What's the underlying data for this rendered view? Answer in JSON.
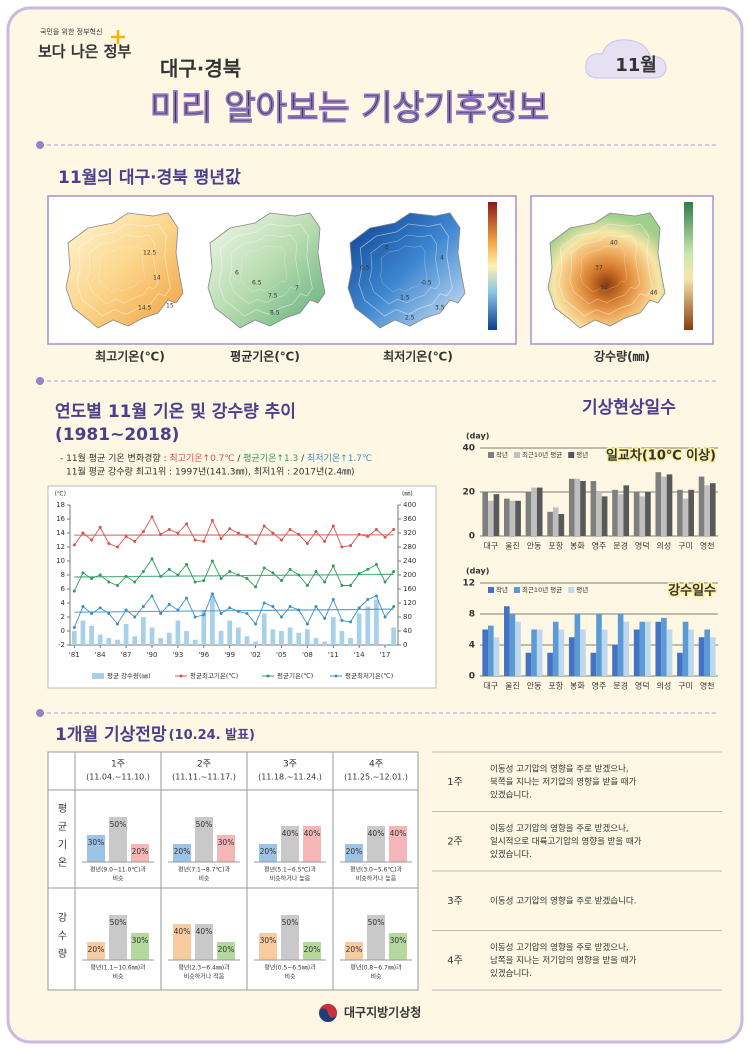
{
  "header": {
    "slogan": "국민을 위한 정부혁신",
    "logo": "보다 나은 정부",
    "region": "대구·경북",
    "title": "미리 알아보는 기상기후정보",
    "month": "11월"
  },
  "normals": {
    "title": "11월의 대구·경북 평년값",
    "maps": [
      {
        "label": "최고기온(℃)",
        "contours": [
          "12.5",
          "14",
          "14.5",
          "15"
        ]
      },
      {
        "label": "평균기온(℃)",
        "contours": [
          "6",
          "6.5",
          "7.5",
          "8.5",
          "7"
        ]
      },
      {
        "label": "최저기온(℃)",
        "contours": [
          "0",
          "0.5",
          "-0.5",
          "1.5",
          "2.5",
          "3.5",
          "4"
        ]
      },
      {
        "label": "강수량(㎜)",
        "contours": [
          "40",
          "37",
          "34",
          "46"
        ]
      }
    ]
  },
  "trend": {
    "title": "연도별 11월 기온 및 강수량 추이",
    "period": "(1981~2018)",
    "note1": {
      "prefix": "- 11월 평균 기온 변화경향 : ",
      "sep": " / ",
      "max_label": "최고기온",
      "max_change": "↑0.7℃",
      "mean_label": "평균기온",
      "mean_change": "↑1.3",
      "min_label": "최저기온",
      "min_change": "↑1.7℃"
    },
    "note2": "11월 평균 강수량 최고1위 : 1997년(141.3㎜), 최저1위 : 2017년(2.4㎜)"
  },
  "days_title": "기상현상일수",
  "chart_data": [
    {
      "type": "combo",
      "y_label": "(℃)",
      "y2_label": "(㎜)",
      "x": [
        1981,
        1982,
        1983,
        1984,
        1985,
        1986,
        1987,
        1988,
        1989,
        1990,
        1991,
        1992,
        1993,
        1994,
        1995,
        1996,
        1997,
        1998,
        1999,
        2000,
        2001,
        2002,
        2003,
        2004,
        2005,
        2006,
        2007,
        2008,
        2009,
        2010,
        2011,
        2012,
        2013,
        2014,
        2015,
        2016,
        2017,
        2018
      ],
      "xlim": [
        1980.5,
        2018.5
      ],
      "xticks": [
        {
          "value": 1981,
          "label": "'81"
        },
        {
          "value": 1984,
          "label": "'84"
        },
        {
          "value": 1987,
          "label": "'87"
        },
        {
          "value": 1990,
          "label": "'90"
        },
        {
          "value": 1993,
          "label": "'93"
        },
        {
          "value": 1996,
          "label": "'96"
        },
        {
          "value": 1999,
          "label": "'99"
        },
        {
          "value": 2002,
          "label": "'02"
        },
        {
          "value": 2005,
          "label": "'05"
        },
        {
          "value": 2008,
          "label": "'08"
        },
        {
          "value": 2011,
          "label": "'11"
        },
        {
          "value": 2014,
          "label": "'14"
        },
        {
          "value": 2017,
          "label": "'17"
        }
      ],
      "ylim": [
        -2,
        18
      ],
      "yticks": [
        -2,
        0,
        2,
        4,
        6,
        8,
        10,
        12,
        14,
        16,
        18
      ],
      "y2lim": [
        0,
        400
      ],
      "y2ticks": [
        0,
        40,
        80,
        120,
        160,
        200,
        240,
        280,
        320,
        360,
        400
      ],
      "series": [
        {
          "name": "평균 강수량(㎜)",
          "type": "bar",
          "axis": "y2",
          "color": "#a9d0ea",
          "values": [
            40,
            70,
            55,
            30,
            20,
            15,
            60,
            25,
            80,
            50,
            20,
            35,
            70,
            40,
            15,
            100,
            141.3,
            40,
            70,
            50,
            25,
            10,
            90,
            45,
            40,
            50,
            35,
            45,
            20,
            10,
            80,
            40,
            20,
            90,
            110,
            130,
            2.4,
            50
          ]
        },
        {
          "name": "평균최고기온(℃)",
          "type": "line",
          "color": "#d9534f",
          "values": [
            12.3,
            14.0,
            13.0,
            14.8,
            12.5,
            12.0,
            13.5,
            12.8,
            14.2,
            16.3,
            13.8,
            14.5,
            14.0,
            15.3,
            13.0,
            12.8,
            15.8,
            13.2,
            14.6,
            14.0,
            13.5,
            12.5,
            15.0,
            14.0,
            13.0,
            14.5,
            13.8,
            12.5,
            14.2,
            12.8,
            15.0,
            12.0,
            12.2,
            13.8,
            13.5,
            14.5,
            13.4,
            14.5
          ]
        },
        {
          "name": "평균기온(℃)",
          "type": "line",
          "color": "#2e9e60",
          "values": [
            5.7,
            8.3,
            7.5,
            8.0,
            7.0,
            6.5,
            7.8,
            7.0,
            8.5,
            10.3,
            7.8,
            8.8,
            8.0,
            9.5,
            7.0,
            7.2,
            10.0,
            7.5,
            8.5,
            8.0,
            7.5,
            6.3,
            9.0,
            8.3,
            7.2,
            8.8,
            8.0,
            6.5,
            8.5,
            7.0,
            9.3,
            6.5,
            6.5,
            8.2,
            8.8,
            9.5,
            7.0,
            8.5
          ]
        },
        {
          "name": "평균최저기온(℃)",
          "type": "line",
          "color": "#3b8fc4",
          "values": [
            0.5,
            3.5,
            2.5,
            3.3,
            2.5,
            1.0,
            3.0,
            2.0,
            3.5,
            5.0,
            2.5,
            3.8,
            3.0,
            4.7,
            2.0,
            2.3,
            5.3,
            2.5,
            3.3,
            2.8,
            2.5,
            1.0,
            4.0,
            3.5,
            2.0,
            3.5,
            3.0,
            1.0,
            3.5,
            1.8,
            4.5,
            1.5,
            1.3,
            3.3,
            4.5,
            5.0,
            2.0,
            3.5
          ]
        }
      ]
    },
    {
      "type": "bar",
      "title": "일교차(10℃ 이상)",
      "y_label": "(day)",
      "categories": [
        "대구",
        "울진",
        "안동",
        "포항",
        "봉화",
        "영주",
        "문경",
        "영덕",
        "의성",
        "구미",
        "영천"
      ],
      "ylim": [
        0,
        40
      ],
      "yticks": [
        0,
        20,
        40
      ],
      "grid": true,
      "series": [
        {
          "name": "작년",
          "color": "#7f7f7f",
          "values": [
            20,
            17,
            20,
            11,
            26,
            25,
            21,
            20,
            29,
            21,
            27
          ]
        },
        {
          "name": "최근10년 평균",
          "color": "#bfbfbf",
          "values": [
            16,
            16,
            22,
            13,
            26,
            20,
            19,
            18,
            27,
            17,
            23
          ]
        },
        {
          "name": "평년",
          "color": "#595959",
          "values": [
            19,
            16,
            22,
            10,
            25,
            18,
            23,
            20,
            28,
            21,
            24
          ]
        }
      ]
    },
    {
      "type": "bar",
      "title": "강수일수",
      "y_label": "(day)",
      "categories": [
        "대구",
        "울진",
        "안동",
        "포항",
        "봉화",
        "영주",
        "문경",
        "영덕",
        "의성",
        "구미",
        "영천"
      ],
      "ylim": [
        0,
        12
      ],
      "yticks": [
        0,
        4,
        8,
        12
      ],
      "grid": true,
      "series": [
        {
          "name": "작년",
          "color": "#4472c4",
          "values": [
            6,
            9,
            3,
            3,
            5,
            3,
            4,
            6,
            7,
            3,
            5
          ]
        },
        {
          "name": "최근10년 평균",
          "color": "#5b9bd5",
          "values": [
            6.5,
            8,
            6,
            7,
            8,
            8,
            8,
            7,
            7.5,
            7,
            6
          ]
        },
        {
          "name": "평년",
          "color": "#bdd7ee",
          "values": [
            5,
            7,
            6,
            6,
            6,
            6,
            7,
            7,
            6,
            6,
            5
          ]
        }
      ]
    }
  ],
  "outlook": {
    "title": "1개월 기상전망",
    "issued": "(10.24. 발표)",
    "weeks": [
      {
        "label": "1주",
        "period": "(11.04.~11.10.)"
      },
      {
        "label": "2주",
        "period": "(11.11.~11.17.)"
      },
      {
        "label": "3주",
        "period": "(11.18.~11.24.)"
      },
      {
        "label": "4주",
        "period": "(11.25.~12.01.)"
      }
    ],
    "rows": [
      {
        "label": "평균기온",
        "colors": [
          "#9dc3e6",
          "#c9c9c9",
          "#f4b6b6"
        ],
        "cells": [
          {
            "values": [
              30,
              50,
              20
            ],
            "value_labels": [
              "30%",
              "50%",
              "20%"
            ],
            "caption": [
              "평년(9.0~11.0℃)과",
              "비슷"
            ]
          },
          {
            "values": [
              20,
              50,
              30
            ],
            "value_labels": [
              "20%",
              "50%",
              "30%"
            ],
            "caption": [
              "평년(7.1~8.7℃)과",
              "비슷"
            ]
          },
          {
            "values": [
              20,
              40,
              40
            ],
            "value_labels": [
              "20%",
              "40%",
              "40%"
            ],
            "caption": [
              "평년(5.1~6.5℃)과",
              "비슷하거나 높음"
            ]
          },
          {
            "values": [
              20,
              40,
              40
            ],
            "value_labels": [
              "20%",
              "40%",
              "40%"
            ],
            "caption": [
              "평년(3.0~5.6℃)과",
              "비슷하거나 높음"
            ]
          }
        ]
      },
      {
        "label": "강수량",
        "colors": [
          "#f8cba0",
          "#c9c9c9",
          "#b5d99c"
        ],
        "cells": [
          {
            "values": [
              20,
              50,
              30
            ],
            "value_labels": [
              "20%",
              "50%",
              "30%"
            ],
            "caption": [
              "평년(1.1~10.6㎜)과",
              "비슷"
            ]
          },
          {
            "values": [
              40,
              40,
              20
            ],
            "value_labels": [
              "40%",
              "40%",
              "20%"
            ],
            "caption": [
              "평년(2.3~6.4㎜)과",
              "비슷하거나 적음"
            ]
          },
          {
            "values": [
              30,
              50,
              20
            ],
            "value_labels": [
              "30%",
              "50%",
              "20%"
            ],
            "caption": [
              "평년(0.5~6.5㎜)과",
              "비슷"
            ]
          },
          {
            "values": [
              20,
              50,
              30
            ],
            "value_labels": [
              "20%",
              "50%",
              "30%"
            ],
            "caption": [
              "평년(0.8~6.7㎜)과",
              "비슷"
            ]
          }
        ]
      }
    ],
    "comments": [
      {
        "week": "1주",
        "lines": [
          "이동성 고기압의 영향을 주로 받겠으나,",
          "북쪽을 지나는 저기압의 영향을 받을 때가",
          "있겠습니다."
        ]
      },
      {
        "week": "2주",
        "lines": [
          "이동성 고기압의 영향을 주로 받겠으나,",
          "일시적으로 대륙고기압의 영향을 받을 때가",
          "있겠습니다."
        ]
      },
      {
        "week": "3주",
        "lines": [
          "이동성 고기압의 영향을 주로 받겠습니다."
        ]
      },
      {
        "week": "4주",
        "lines": [
          "이동성 고기압의 영향을 주로 받겠으나,",
          "남쪽을 지나는 저기압의 영향을 받을 때가",
          "있겠습니다."
        ]
      }
    ]
  },
  "footer": {
    "org": "대구지방기상청"
  }
}
